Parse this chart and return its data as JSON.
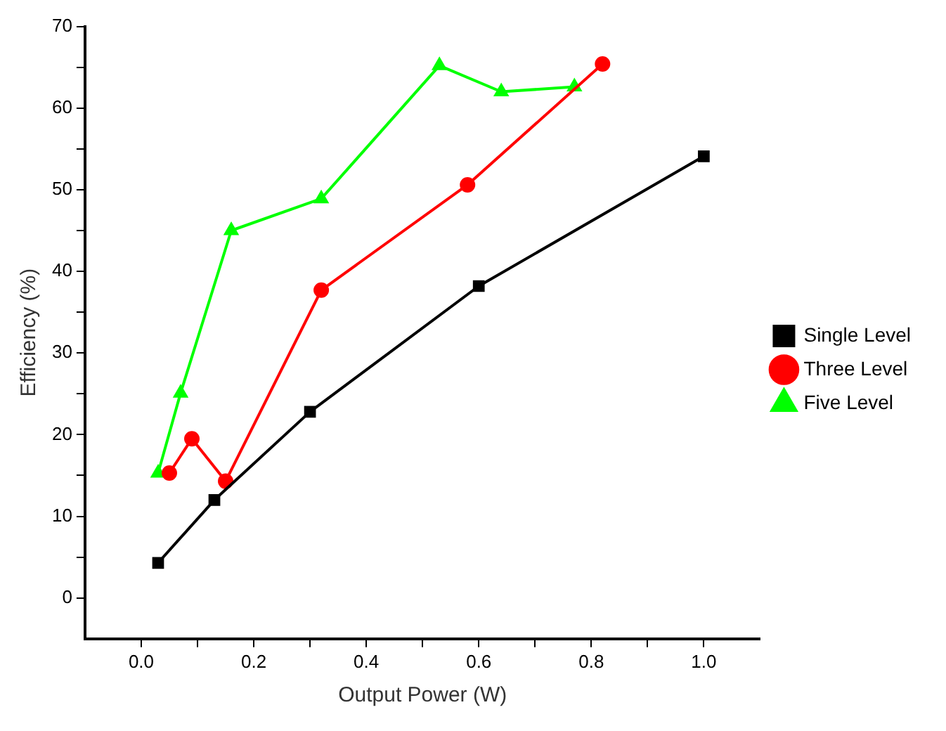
{
  "chart_data": {
    "type": "line",
    "xlabel": "Output Power (W)",
    "ylabel": "Efficiency (%)",
    "xlim": [
      -0.1,
      1.1
    ],
    "ylim": [
      -5,
      70
    ],
    "xticks": [
      {
        "value": 0,
        "label": "0.0"
      },
      {
        "value": 0.1,
        "label": null
      },
      {
        "value": 0.2,
        "label": "0.2"
      },
      {
        "value": 0.3,
        "label": null
      },
      {
        "value": 0.4,
        "label": "0.4"
      },
      {
        "value": 0.5,
        "label": null
      },
      {
        "value": 0.6,
        "label": "0.6"
      },
      {
        "value": 0.7,
        "label": null
      },
      {
        "value": 0.8,
        "label": "0.8"
      },
      {
        "value": 0.9,
        "label": null
      },
      {
        "value": 1,
        "label": "1.0"
      }
    ],
    "yticks": [
      0,
      {
        "value": 5,
        "label": null
      },
      10,
      {
        "value": 15,
        "label": null
      },
      20,
      {
        "value": 25,
        "label": null
      },
      30,
      {
        "value": 35,
        "label": null
      },
      40,
      {
        "value": 45,
        "label": null
      },
      50,
      {
        "value": 55,
        "label": null
      },
      60,
      {
        "value": 65,
        "label": null
      },
      70
    ],
    "grid": false,
    "legend": "right",
    "line_style": "solid",
    "series": [
      {
        "name": "Single Level",
        "color": "#000000",
        "marker": "square",
        "x": [
          0.03,
          0.13,
          0.3,
          0.6,
          1.0
        ],
        "values": [
          4.3,
          12,
          22.8,
          38.2,
          54.1
        ]
      },
      {
        "name": "Three Level",
        "color": "#ff0000",
        "marker": "circle",
        "x": [
          0.05,
          0.09,
          0.15,
          0.32,
          0.58,
          0.82
        ],
        "values": [
          15.3,
          19.5,
          14.3,
          37.7,
          50.6,
          65.4
        ]
      },
      {
        "name": "Five Level",
        "color": "#00ff00",
        "marker": "triangle",
        "x": [
          0.03,
          0.07,
          0.16,
          0.32,
          0.53,
          0.64,
          0.77
        ],
        "values": [
          15.3,
          25.1,
          45,
          48.9,
          65.2,
          62,
          62.6
        ]
      }
    ]
  }
}
